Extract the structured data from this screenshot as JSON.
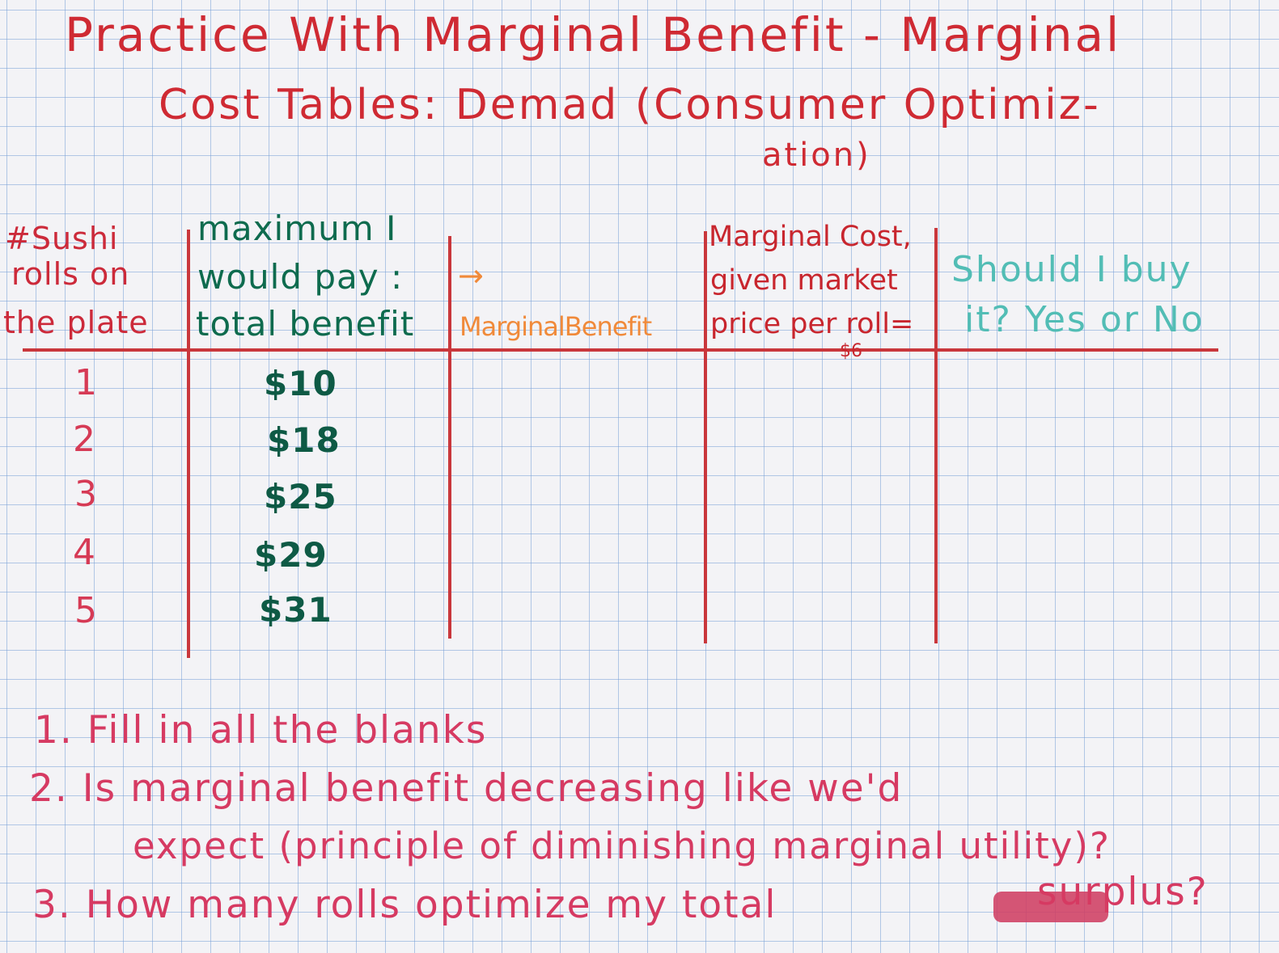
{
  "title": {
    "line1": "Practice With Marginal Benefit - Marginal",
    "line2": "Cost Tables:  Demad (Consumer Optimiz-",
    "line3": "ation)"
  },
  "table": {
    "headers": {
      "rolls": [
        "#Sushi",
        "rolls on",
        "the plate"
      ],
      "total_benefit": [
        "maximum I",
        "would pay :",
        "total benefit"
      ],
      "arrow": "→",
      "marginal_benefit": "MarginalBenefit",
      "marginal_cost": [
        "Marginal Cost,",
        "given market",
        "price per roll="
      ],
      "marginal_cost_price": "$6",
      "should_buy": [
        "Should I buy",
        "it? Yes or No"
      ]
    },
    "rows": [
      {
        "rolls": "1",
        "total_benefit": "$10"
      },
      {
        "rolls": "2",
        "total_benefit": "$18"
      },
      {
        "rolls": "3",
        "total_benefit": "$25"
      },
      {
        "rolls": "4",
        "total_benefit": "$29"
      },
      {
        "rolls": "5",
        "total_benefit": "$31"
      }
    ]
  },
  "questions": {
    "q1": "1. Fill in all the blanks",
    "q2a": "2. Is marginal benefit decreasing like we'd",
    "q2b": "expect (principle of diminishing marginal utility)?",
    "q3_start": "3. How many rolls optimize my total",
    "q3_end": "surplus?"
  },
  "colors": {
    "title_red": "#cf2a33",
    "table_lines": "#c9373c",
    "green_ink": "#0e6b4e",
    "orange_ink": "#f08a3a",
    "teal_ink": "#52bdb5",
    "pink_ink": "#d63a62",
    "paper": "#f3f3f6",
    "grid": "#78a0d7"
  }
}
